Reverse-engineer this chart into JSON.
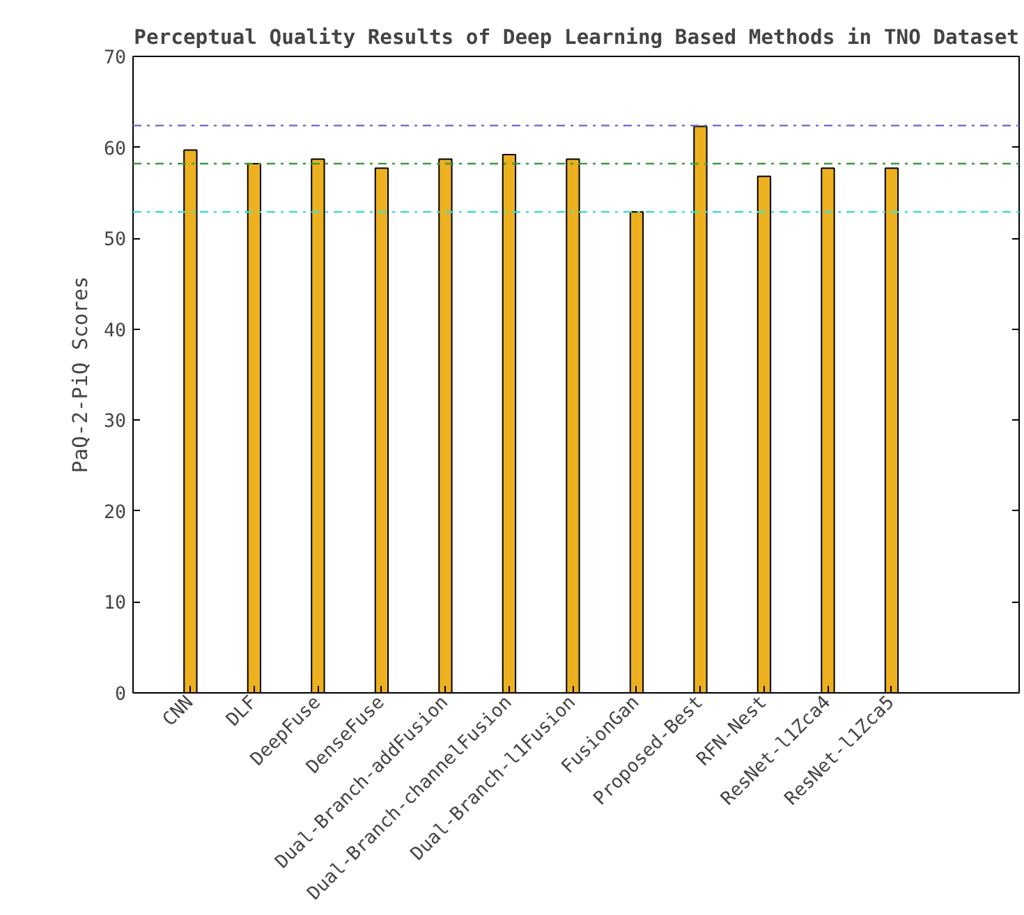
{
  "chart_data": {
    "type": "bar",
    "title": "Perceptual Quality Results of Deep Learning Based Methods in TNO Dataset",
    "ylabel": "PaQ-2-PiQ Scores",
    "categories": [
      "CNN",
      "DLF",
      "DeepFuse",
      "DenseFuse",
      "Dual-Branch-addFusion",
      "Dual-Branch-channelFusion",
      "Dual-Branch-l1Fusion",
      "FusionGan",
      "Proposed-Best",
      "RFN-Nest",
      "ResNet-l1Zca4",
      "ResNet-l1Zca5"
    ],
    "values": [
      59.7,
      58.2,
      58.7,
      57.7,
      58.7,
      59.2,
      58.7,
      52.9,
      62.3,
      56.8,
      57.7,
      57.7
    ],
    "color": "#edb120",
    "ylim": [
      0,
      70
    ],
    "yticks": [
      0,
      10,
      20,
      30,
      40,
      50,
      60,
      70
    ],
    "grid": false,
    "ref_lines": [
      {
        "axis": "y",
        "value": 62.4,
        "color": "#7e6fd0",
        "line_style": "dashdot"
      },
      {
        "axis": "y",
        "value": 58.2,
        "color": "#3c9a3c",
        "line_style": "dashdot"
      },
      {
        "axis": "y",
        "value": 52.9,
        "color": "#40e0d0",
        "line_style": "dashdot"
      }
    ]
  }
}
